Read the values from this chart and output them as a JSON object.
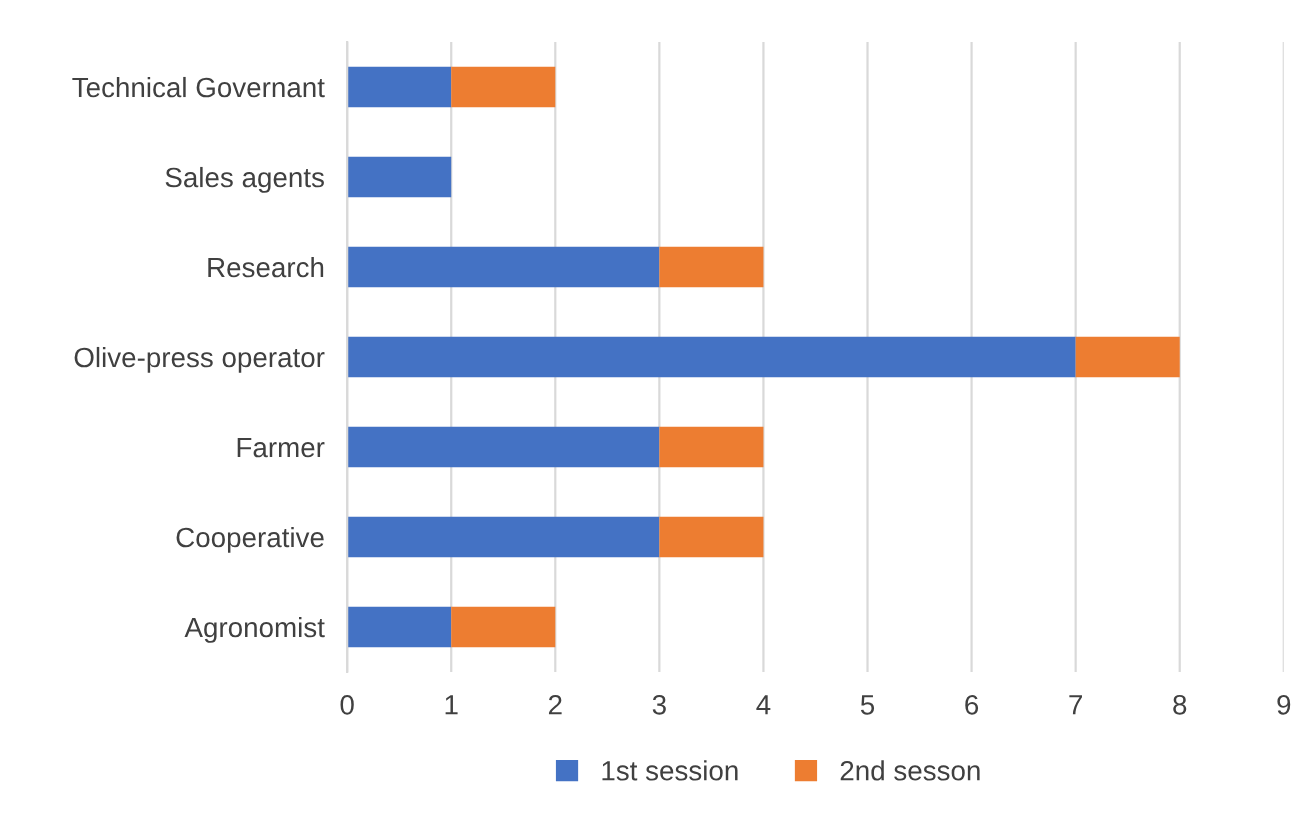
{
  "chart_data": {
    "type": "bar",
    "orientation": "horizontal",
    "stacked": true,
    "categories": [
      "Technical Governant",
      "Sales agents",
      "Research",
      "Olive-press operator",
      "Farmer",
      "Cooperative",
      "Agronomist"
    ],
    "series": [
      {
        "name": "1st session",
        "color": "#4472c4",
        "values": [
          1,
          1,
          3,
          7,
          3,
          3,
          1
        ]
      },
      {
        "name": "2nd sesson",
        "color": "#ed7d31",
        "values": [
          1,
          0,
          1,
          1,
          1,
          1,
          1
        ]
      }
    ],
    "xlim": [
      0,
      9
    ],
    "xticks": [
      0,
      1,
      2,
      3,
      4,
      5,
      6,
      7,
      8,
      9
    ],
    "grid": "x",
    "legend": "bottom"
  }
}
